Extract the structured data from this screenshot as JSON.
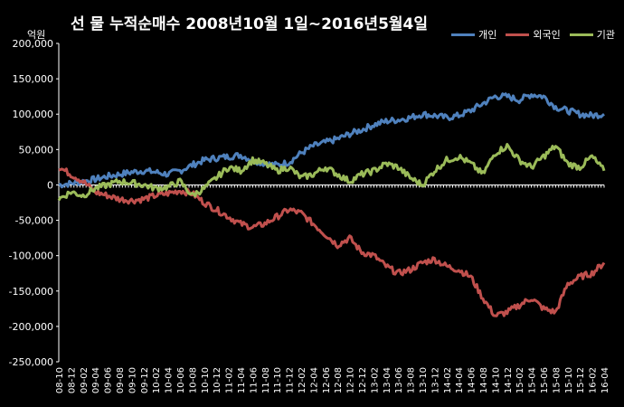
{
  "chart_data": {
    "type": "line",
    "title": "선 물 누적순매수 2008년10월 1일~2016년5월4일",
    "unit_label": "억원",
    "ylim": [
      -250000,
      200000
    ],
    "yticks": [
      200000,
      150000,
      100000,
      50000,
      0,
      -50000,
      -100000,
      -150000,
      -200000,
      -250000
    ],
    "ytick_labels": [
      "200,000",
      "150,000",
      "100,000",
      "50,000",
      "0",
      "-50,000",
      "-100,000",
      "-150,000",
      "-200,000",
      "-250,000"
    ],
    "x_categories": [
      "08-10",
      "08-12",
      "09-02",
      "09-04",
      "09-06",
      "09-08",
      "09-10",
      "09-12",
      "10-02",
      "10-04",
      "10-06",
      "10-08",
      "10-10",
      "10-12",
      "11-02",
      "11-04",
      "11-06",
      "11-08",
      "11-10",
      "11-12",
      "12-02",
      "12-04",
      "12-06",
      "12-08",
      "12-10",
      "12-12",
      "13-02",
      "13-04",
      "13-06",
      "13-08",
      "13-10",
      "13-12",
      "14-02",
      "14-04",
      "14-06",
      "14-08",
      "14-10",
      "14-12",
      "15-02",
      "15-04",
      "15-06",
      "15-08",
      "15-10",
      "15-12",
      "16-02",
      "16-04"
    ],
    "grid": false,
    "legend_position": "top-right",
    "series": [
      {
        "name": "개인",
        "color": "#4F81BD",
        "values": [
          0,
          2000,
          5000,
          8000,
          12000,
          15000,
          18000,
          20000,
          18000,
          15000,
          20000,
          28000,
          35000,
          38000,
          40000,
          42000,
          35000,
          30000,
          28000,
          32000,
          45000,
          55000,
          60000,
          65000,
          72000,
          78000,
          85000,
          90000,
          92000,
          95000,
          100000,
          98000,
          95000,
          98000,
          105000,
          115000,
          125000,
          125000,
          120000,
          128000,
          125000,
          110000,
          105000,
          100000,
          98000,
          100000
        ]
      },
      {
        "name": "외국인",
        "color": "#C0504D",
        "values": [
          25000,
          15000,
          5000,
          -10000,
          -15000,
          -20000,
          -22000,
          -20000,
          -15000,
          -12000,
          -8000,
          -12000,
          -25000,
          -35000,
          -45000,
          -55000,
          -60000,
          -55000,
          -45000,
          -35000,
          -40000,
          -55000,
          -70000,
          -85000,
          -75000,
          -95000,
          -100000,
          -115000,
          -125000,
          -120000,
          -110000,
          -105000,
          -115000,
          -120000,
          -130000,
          -160000,
          -185000,
          -180000,
          -170000,
          -160000,
          -175000,
          -180000,
          -140000,
          -130000,
          -125000,
          -110000
        ]
      },
      {
        "name": "기관",
        "color": "#9BBB59",
        "values": [
          -20000,
          -10000,
          -15000,
          -5000,
          0,
          5000,
          3000,
          0,
          -5000,
          -3000,
          5000,
          -15000,
          -5000,
          10000,
          25000,
          20000,
          35000,
          30000,
          20000,
          25000,
          10000,
          15000,
          25000,
          15000,
          5000,
          15000,
          20000,
          30000,
          25000,
          10000,
          0,
          20000,
          35000,
          40000,
          30000,
          15000,
          45000,
          55000,
          35000,
          25000,
          40000,
          55000,
          30000,
          25000,
          40000,
          20000
        ]
      }
    ]
  }
}
